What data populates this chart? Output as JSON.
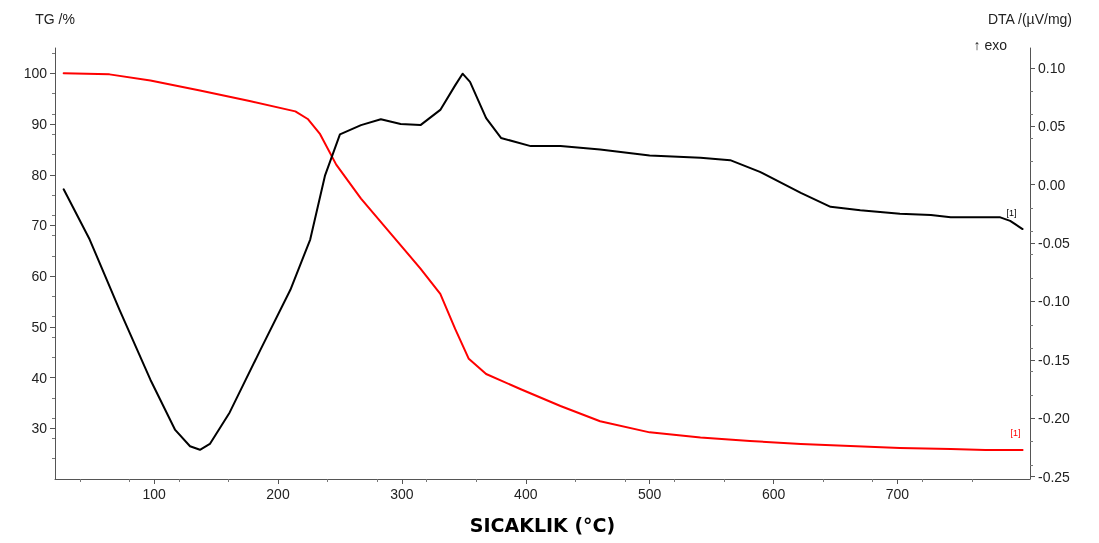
{
  "chart_data": {
    "type": "line",
    "xlabel": "SICAKLIK (°C)",
    "ylabel": "TG /%",
    "y2label": "DTA /(µV/mg)",
    "xlim": [
      20,
      807
    ],
    "xticks": [
      100,
      200,
      300,
      400,
      500,
      600,
      700
    ],
    "ylim": [
      20,
      105
    ],
    "yticks": [
      30,
      40,
      50,
      60,
      70,
      80,
      90,
      100
    ],
    "y2lim": [
      -0.252,
      0.117
    ],
    "y2ticks": [
      -0.25,
      {
        "value": -0.2,
        "label": "-0.20"
      },
      -0.15,
      {
        "value": -0.1,
        "label": "-0.10"
      },
      -0.05,
      {
        "value": 0,
        "label": "0.00"
      },
      0.05,
      {
        "value": 0.1,
        "label": "0.10"
      }
    ],
    "grid": false,
    "marker": "none",
    "line_style": "solid",
    "annotations": [
      "↑ exo",
      {
        "text": "[1]",
        "x": 801,
        "y": 25.7
      },
      "[1]"
    ],
    "series": [
      {
        "color": "#ff0000",
        "x": [
          27,
          64,
          97,
          137,
          178,
          214,
          224,
          234,
          247,
          267,
          291,
          315,
          331,
          343,
          354,
          368,
          396,
          428,
          460,
          500,
          541,
          581,
          622,
          662,
          702,
          743,
          771,
          801
        ],
        "values": [
          100,
          99.8,
          98.6,
          96.6,
          94.5,
          92.5,
          91,
          88,
          82,
          75.3,
          68.4,
          61.5,
          56.5,
          49.6,
          43.7,
          40.7,
          37.7,
          34.4,
          31.4,
          29.2,
          28.2,
          27.5,
          26.9,
          26.5,
          26.1,
          25.9,
          25.7,
          25.7
        ]
      },
      {
        "color": "#000000",
        "axis": "y2",
        "x": [
          27,
          48,
          72,
          97,
          117,
          129,
          137,
          145,
          161,
          186,
          210,
          226,
          238,
          250,
          267,
          283,
          299,
          315,
          331,
          343,
          349,
          355,
          368,
          380,
          404,
          428,
          460,
          500,
          541,
          565,
          589,
          622,
          646,
          670,
          702,
          727,
          743,
          783,
          791,
          801
        ],
        "values": [
          -0.004,
          -0.047,
          -0.107,
          -0.167,
          -0.21,
          -0.224,
          -0.227,
          -0.222,
          -0.195,
          -0.141,
          -0.09,
          -0.047,
          0.008,
          0.043,
          0.051,
          0.056,
          0.052,
          0.051,
          0.064,
          0.085,
          0.095,
          0.088,
          0.057,
          0.04,
          0.033,
          0.033,
          0.03,
          0.025,
          0.023,
          0.021,
          0.011,
          -0.007,
          -0.019,
          -0.022,
          -0.025,
          -0.026,
          -0.028,
          -0.028,
          -0.031,
          -0.038
        ]
      }
    ]
  }
}
